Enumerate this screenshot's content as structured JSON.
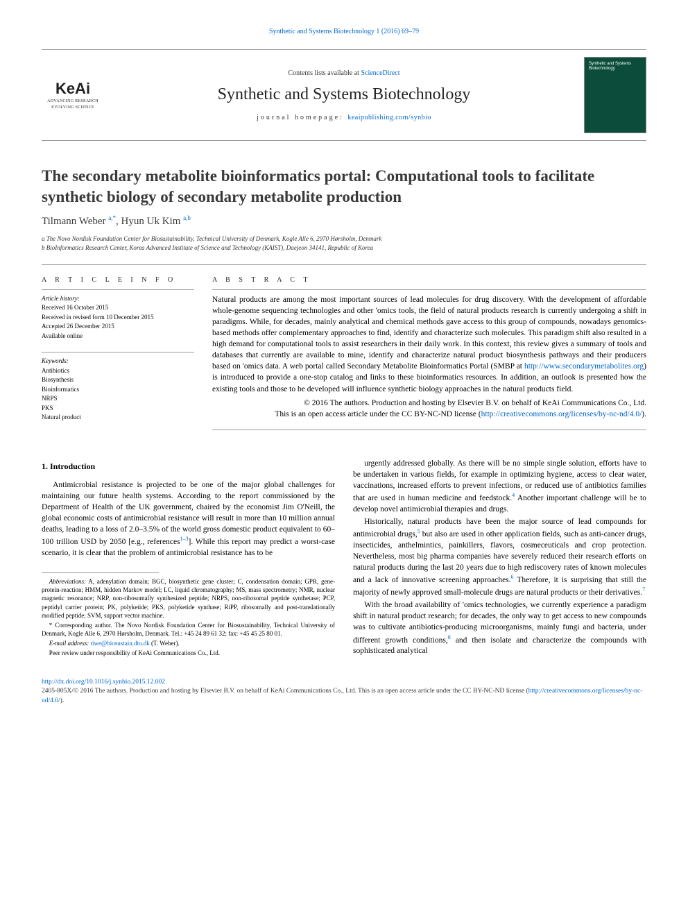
{
  "top_citation": "Synthetic and Systems Biotechnology 1 (2016) 69–79",
  "header": {
    "contents_line_pre": "Contents lists available at ",
    "contents_link": "ScienceDirect",
    "journal_name": "Synthetic and Systems Biotechnology",
    "homepage_label": "journal homepage: ",
    "homepage_link": "keaipublishing.com/synbio",
    "keai_brand": "KeAi",
    "keai_sub1": "ADVANCING RESEARCH",
    "keai_sub2": "EVOLVING SCIENCE",
    "cover_text": "Synthetic\nand Systems\nBiotechnology"
  },
  "title": "The secondary metabolite bioinformatics portal: Computational tools to facilitate synthetic biology of secondary metabolite production",
  "authors": {
    "a1_name": "Tilmann Weber ",
    "a1_sup": "a,*",
    "sep": ", ",
    "a2_name": "Hyun Uk Kim ",
    "a2_sup": "a,b"
  },
  "affiliations": {
    "a": "a The Novo Nordisk Foundation Center for Biosustainability, Technical University of Denmark, Kogle Alle 6, 2970 Hørsholm, Denmark",
    "b": "b BioInformatics Research Center, Korea Advanced Institute of Science and Technology (KAIST), Daejeon 34141, Republic of Korea"
  },
  "article_info_label": "A R T I C L E   I N F O",
  "history": {
    "label": "Article history:",
    "received": "Received 16 October 2015",
    "revised": "Received in revised form 10 December 2015",
    "accepted": "Accepted 26 December 2015",
    "available": "Available online"
  },
  "keywords": {
    "label": "Keywords:",
    "items": [
      "Antibiotics",
      "Biosynthesis",
      "Bioinformatics",
      "NRPS",
      "PKS",
      "Natural product"
    ]
  },
  "abstract_label": "A B S T R A C T",
  "abstract_body_1": "Natural products are among the most important sources of lead molecules for drug discovery. With the development of affordable whole-genome sequencing technologies and other 'omics tools, the field of natural products research is currently undergoing a shift in paradigms. While, for decades, mainly analytical and chemical methods gave access to this group of compounds, nowadays genomics-based methods offer complementary approaches to find, identify and characterize such molecules. This paradigm shift also resulted in a high demand for computational tools to assist researchers in their daily work. In this context, this review gives a summary of tools and databases that currently are available to mine, identify and characterize natural product biosynthesis pathways and their producers based on 'omics data. A web portal called Secondary Metabolite Bioinformatics Portal (SMBP at ",
  "abstract_link": "http://www.secondarymetabolites.org",
  "abstract_body_2": ") is introduced to provide a one-stop catalog and links to these bioinformatics resources. In addition, an outlook is presented how the existing tools and those to be developed will influence synthetic biology approaches in the natural products field.",
  "copyright_line": "© 2016 The authors. Production and hosting by Elsevier B.V. on behalf of KeAi Communications Co., Ltd.",
  "license_line_pre": "This is an open access article under the CC BY-NC-ND license (",
  "license_link": "http://creativecommons.org/licenses/by-nc-nd/4.0/",
  "license_line_post": ").",
  "intro_heading": "1.  Introduction",
  "intro_p1_pre": "Antimicrobial resistance is projected to be one of the major global challenges for maintaining our future health systems. According to the report commissioned by the Department of Health of the UK government, chaired by the economist Jim O'Neill, the global economic costs of antimicrobial resistance will result in more than 10 million annual deaths, leading to a loss of 2.0–3.5% of the world gross domestic product equivalent to 60–100 trillion USD by 2050 [e.g., references",
  "intro_p1_ref": "1–3",
  "intro_p1_post": "]. While this report may predict a worst-case scenario, it is clear that the problem of antimicrobial resistance has to be",
  "intro_p2_pre": "urgently addressed globally. As there will be no simple single solution, efforts have to be undertaken in various fields, for example in optimizing hygiene, access to clear water, vaccinations, increased efforts to prevent infections, or reduced use of antibiotics families that are used in human medicine and feedstock.",
  "intro_p2_ref": "4",
  "intro_p2_post": " Another important challenge will be to develop novel antimicrobial therapies and drugs.",
  "intro_p3_pre": "Historically, natural products have been the major source of lead compounds for antimicrobial drugs,",
  "intro_p3_ref1": "5",
  "intro_p3_mid": " but also are used in other application fields, such as anti-cancer drugs, insecticides, anthelmintics, painkillers, flavors, cosmeceuticals and crop protection. Nevertheless, most big pharma companies have severely reduced their research efforts on natural products during the last 20 years due to high rediscovery rates of known molecules and a lack of innovative screening approaches.",
  "intro_p3_ref2": "6",
  "intro_p3_mid2": " Therefore, it is surprising that still the majority of newly approved small-molecule drugs are natural products or their derivatives.",
  "intro_p3_ref3": "7",
  "intro_p4_pre": "With the broad availability of 'omics technologies, we currently experience a paradigm shift in natural product research; for decades, the only way to get access to new compounds was to cultivate antibiotics-producing microorganisms, mainly fungi and bacteria, under different growth conditions,",
  "intro_p4_ref": "8",
  "intro_p4_post": " and then isolate and characterize the compounds with sophisticated analytical",
  "footnotes": {
    "abbrev_label": "Abbreviations:",
    "abbrev": " A, adenylation domain; BGC, biosynthetic gene cluster; C, condensation domain; GPR, gene-protein-reaction; HMM, hidden Markov model; LC, liquid chromatography; MS, mass spectrometry; NMR, nuclear magnetic resonance; NRP, non-ribosomally synthesized peptide; NRPS, non-ribosomal peptide synthetase; PCP, peptidyl carrier protein; PK, polyketide; PKS, polyketide synthase; RiPP, ribosomally and post-translationally modified peptide; SVM, support vector machine.",
    "corresp": "* Corresponding author. The Novo Nordisk Foundation Center for Biosustainability, Technical University of Denmark, Kogle Alle 6, 2970 Hørsholm, Denmark. Tel.: +45 24 89 61 32; fax: +45 45 25 80 01.",
    "email_label": "E-mail address: ",
    "email": "tiwe@biosustain.dtu.dk",
    "email_post": " (T. Weber).",
    "peer": "Peer review under responsibility of KeAi Communications Co., Ltd."
  },
  "doi_link": "http://dx.doi.org/10.1016/j.synbio.2015.12.002",
  "bottom_copyright_pre": "2405-805X/© 2016 The authors. Production and hosting by Elsevier B.V. on behalf of KeAi Communications Co., Ltd. This is an open access article under the CC BY-NC-ND license (",
  "bottom_copyright_link": "http://creativecommons.org/licenses/by-nc-nd/4.0/",
  "bottom_copyright_post": ").",
  "colors": {
    "link": "#0066cc",
    "rule": "#999999",
    "cover_bg": "#0b4d3a",
    "text": "#000000"
  }
}
